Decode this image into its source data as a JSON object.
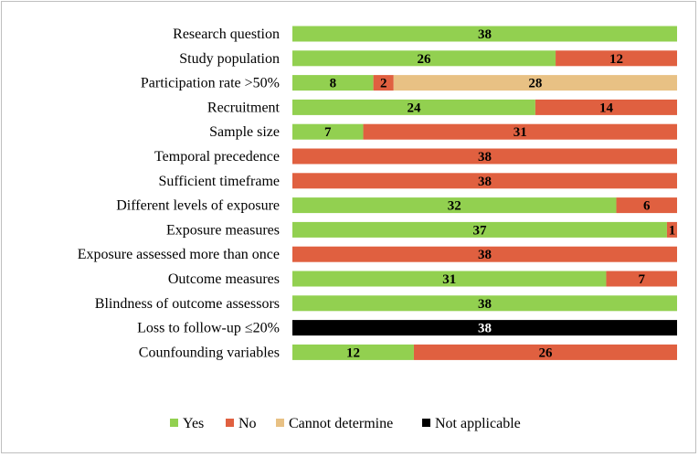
{
  "chart_data": {
    "type": "bar",
    "orientation": "horizontal",
    "stacked": true,
    "title": "",
    "xlabel": "",
    "ylabel": "",
    "xlim": [
      0,
      38
    ],
    "grid": false,
    "legend_position": "bottom",
    "categories": [
      "Research question",
      "Study population",
      "Participation rate >50%",
      "Recruitment",
      "Sample size",
      "Temporal precedence",
      "Sufficient timeframe",
      "Different levels of exposure",
      "Exposure measures",
      "Exposure assessed more than once",
      "Outcome measures",
      "Blindness of outcome assessors",
      "Loss to follow-up ≤20%",
      "Counfounding variables"
    ],
    "series": [
      {
        "name": "Yes",
        "color": "#92d050",
        "label_color": "#000000",
        "values": [
          38,
          26,
          8,
          24,
          7,
          0,
          0,
          32,
          37,
          0,
          31,
          38,
          0,
          12
        ]
      },
      {
        "name": "No",
        "color": "#e06040",
        "label_color": "#000000",
        "values": [
          0,
          12,
          2,
          14,
          31,
          38,
          38,
          6,
          1,
          38,
          7,
          0,
          0,
          26
        ]
      },
      {
        "name": "Cannot determine",
        "color": "#e8c184",
        "label_color": "#000000",
        "values": [
          0,
          0,
          28,
          0,
          0,
          0,
          0,
          0,
          0,
          0,
          0,
          0,
          0,
          0
        ]
      },
      {
        "name": "Not applicable",
        "color": "#000000",
        "label_color": "#ffffff",
        "values": [
          0,
          0,
          0,
          0,
          0,
          0,
          0,
          0,
          0,
          0,
          0,
          0,
          38,
          0
        ]
      }
    ]
  }
}
